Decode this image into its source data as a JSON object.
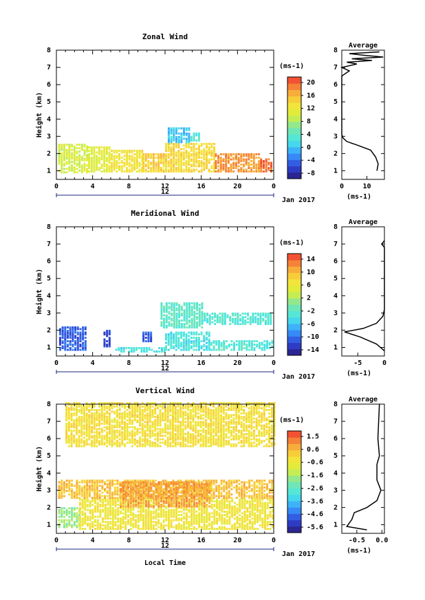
{
  "date_label": "Jan 2017",
  "xlabel_bottom": "Local Time",
  "chart_data": [
    {
      "type": "heatmap",
      "title": "Zonal Wind",
      "ylabel": "Height (km)",
      "xlim": [
        0,
        24
      ],
      "ylim": [
        0.5,
        8
      ],
      "x_ticks": [
        "0",
        "4",
        "8",
        "12",
        "16",
        "20",
        "0"
      ],
      "y_ticks": [
        "1",
        "2",
        "3",
        "4",
        "5",
        "6",
        "7",
        "8"
      ],
      "day_label": "12",
      "colorbar": {
        "unit": "(ms-1)",
        "ticks": [
          "20",
          "16",
          "12",
          "8",
          "4",
          "0",
          "-4",
          "-8"
        ],
        "range": [
          -10,
          22
        ]
      },
      "blocks": [
        {
          "x": [
            0.2,
            3.5
          ],
          "y": [
            0.85,
            2.5
          ],
          "v": 10
        },
        {
          "x": [
            3.5,
            6.0
          ],
          "y": [
            0.9,
            2.4
          ],
          "v": 11
        },
        {
          "x": [
            6.0,
            9.5
          ],
          "y": [
            0.9,
            2.2
          ],
          "v": 13
        },
        {
          "x": [
            9.5,
            12.0
          ],
          "y": [
            0.9,
            2.0
          ],
          "v": 15
        },
        {
          "x": [
            12.0,
            17.5
          ],
          "y": [
            0.9,
            2.6
          ],
          "v": 14
        },
        {
          "x": [
            17.5,
            22.5
          ],
          "y": [
            0.9,
            2.0
          ],
          "v": 18
        },
        {
          "x": [
            22.5,
            23.8
          ],
          "y": [
            0.9,
            1.7
          ],
          "v": 20
        },
        {
          "x": [
            12.3,
            14.8
          ],
          "y": [
            2.6,
            3.5
          ],
          "v": 0
        },
        {
          "x": [
            14.8,
            15.8
          ],
          "y": [
            2.7,
            3.2
          ],
          "v": 3
        }
      ],
      "avg": {
        "title": "Average",
        "xlim": [
          0,
          17
        ],
        "x_ticks": [
          "0",
          "10"
        ],
        "xlabel": "(ms-1)",
        "profile": [
          [
            14,
            1.0
          ],
          [
            14.5,
            1.4
          ],
          [
            13.5,
            1.8
          ],
          [
            11.5,
            2.2
          ],
          [
            6,
            2.5
          ],
          [
            2,
            2.7
          ],
          [
            0.5,
            2.9
          ],
          [
            0,
            3.1
          ],
          [
            0,
            6.5
          ],
          [
            3,
            6.8
          ],
          [
            0,
            7.0
          ],
          [
            6,
            7.2
          ],
          [
            2,
            7.3
          ],
          [
            12,
            7.4
          ],
          [
            4,
            7.5
          ],
          [
            16.5,
            7.6
          ],
          [
            9,
            7.7
          ],
          [
            3,
            7.8
          ],
          [
            15,
            7.9
          ]
        ]
      }
    },
    {
      "type": "heatmap",
      "title": "Meridional Wind",
      "ylabel": "Height (km)",
      "xlim": [
        0,
        24
      ],
      "ylim": [
        0.5,
        8
      ],
      "x_ticks": [
        "0",
        "4",
        "8",
        "12",
        "16",
        "20",
        "0"
      ],
      "y_ticks": [
        "1",
        "2",
        "3",
        "4",
        "5",
        "6",
        "7",
        "8"
      ],
      "day_label": "12",
      "colorbar": {
        "unit": "(ms-1)",
        "ticks": [
          "14",
          "10",
          "6",
          "2",
          "-2",
          "-6",
          "-10",
          "-14"
        ],
        "range": [
          -16,
          16
        ]
      },
      "blocks": [
        {
          "x": [
            0.3,
            3.2
          ],
          "y": [
            0.8,
            2.2
          ],
          "v": -11
        },
        {
          "x": [
            5.2,
            6.0
          ],
          "y": [
            1.0,
            2.0
          ],
          "v": -12
        },
        {
          "x": [
            9.5,
            10.5
          ],
          "y": [
            1.3,
            1.9
          ],
          "v": -11
        },
        {
          "x": [
            11.5,
            16.0
          ],
          "y": [
            2.1,
            3.6
          ],
          "v": -2
        },
        {
          "x": [
            16.0,
            23.8
          ],
          "y": [
            2.3,
            3.0
          ],
          "v": -3
        },
        {
          "x": [
            12.0,
            17.0
          ],
          "y": [
            0.8,
            1.9
          ],
          "v": -4
        },
        {
          "x": [
            17.0,
            23.8
          ],
          "y": [
            0.8,
            1.4
          ],
          "v": -3
        },
        {
          "x": [
            6.5,
            12.0
          ],
          "y": [
            0.7,
            0.9
          ],
          "v": -4
        }
      ],
      "avg": {
        "title": "Average",
        "xlim": [
          -8,
          0
        ],
        "x_ticks": [
          "-5",
          "0"
        ],
        "xlabel": "(ms-1)",
        "profile": [
          [
            0,
            0.8
          ],
          [
            -1.5,
            1.2
          ],
          [
            -4.5,
            1.6
          ],
          [
            -7.5,
            1.9
          ],
          [
            -4,
            2.1
          ],
          [
            -1.5,
            2.4
          ],
          [
            -0.3,
            2.8
          ],
          [
            0,
            3.2
          ],
          [
            0,
            6.8
          ],
          [
            -0.5,
            7.0
          ],
          [
            0,
            7.2
          ]
        ]
      }
    },
    {
      "type": "heatmap",
      "title": "Vertical Wind",
      "ylabel": "Height (km)",
      "xlim": [
        0,
        24
      ],
      "ylim": [
        0.5,
        8
      ],
      "x_ticks": [
        "0",
        "4",
        "8",
        "12",
        "16",
        "20",
        "0"
      ],
      "y_ticks": [
        "1",
        "2",
        "3",
        "4",
        "5",
        "6",
        "7",
        "8"
      ],
      "day_label": "12",
      "colorbar": {
        "unit": "(ms-1)",
        "ticks": [
          "1.5",
          "0.6",
          "-0.6",
          "-1.6",
          "-2.6",
          "-3.6",
          "-4.6",
          "-5.6"
        ],
        "range": [
          -6.2,
          2.0
        ]
      },
      "blocks": [
        {
          "x": [
            0.2,
            2.5
          ],
          "y": [
            0.8,
            2.0
          ],
          "v": -1.8
        },
        {
          "x": [
            2.5,
            24
          ],
          "y": [
            0.7,
            2.5
          ],
          "v": -0.4
        },
        {
          "x": [
            0.2,
            24
          ],
          "y": [
            2.5,
            3.6
          ],
          "v": 0.4
        },
        {
          "x": [
            7.0,
            17.0
          ],
          "y": [
            2.0,
            3.5
          ],
          "v": 0.8
        },
        {
          "x": [
            1.0,
            24
          ],
          "y": [
            5.5,
            8.0
          ],
          "v": -0.2
        }
      ],
      "avg": {
        "title": "Average",
        "xlim": [
          -0.8,
          0.05
        ],
        "x_ticks": [
          "-0.5",
          "0.0"
        ],
        "xlabel": "(ms-1)",
        "profile": [
          [
            -0.3,
            0.7
          ],
          [
            -0.7,
            0.9
          ],
          [
            -0.6,
            1.3
          ],
          [
            -0.55,
            1.7
          ],
          [
            -0.3,
            2.0
          ],
          [
            -0.1,
            2.4
          ],
          [
            -0.02,
            3.0
          ],
          [
            -0.1,
            3.6
          ],
          [
            -0.1,
            4.5
          ],
          [
            -0.05,
            5.0
          ],
          [
            -0.08,
            6.0
          ],
          [
            -0.05,
            8.0
          ]
        ]
      }
    }
  ]
}
